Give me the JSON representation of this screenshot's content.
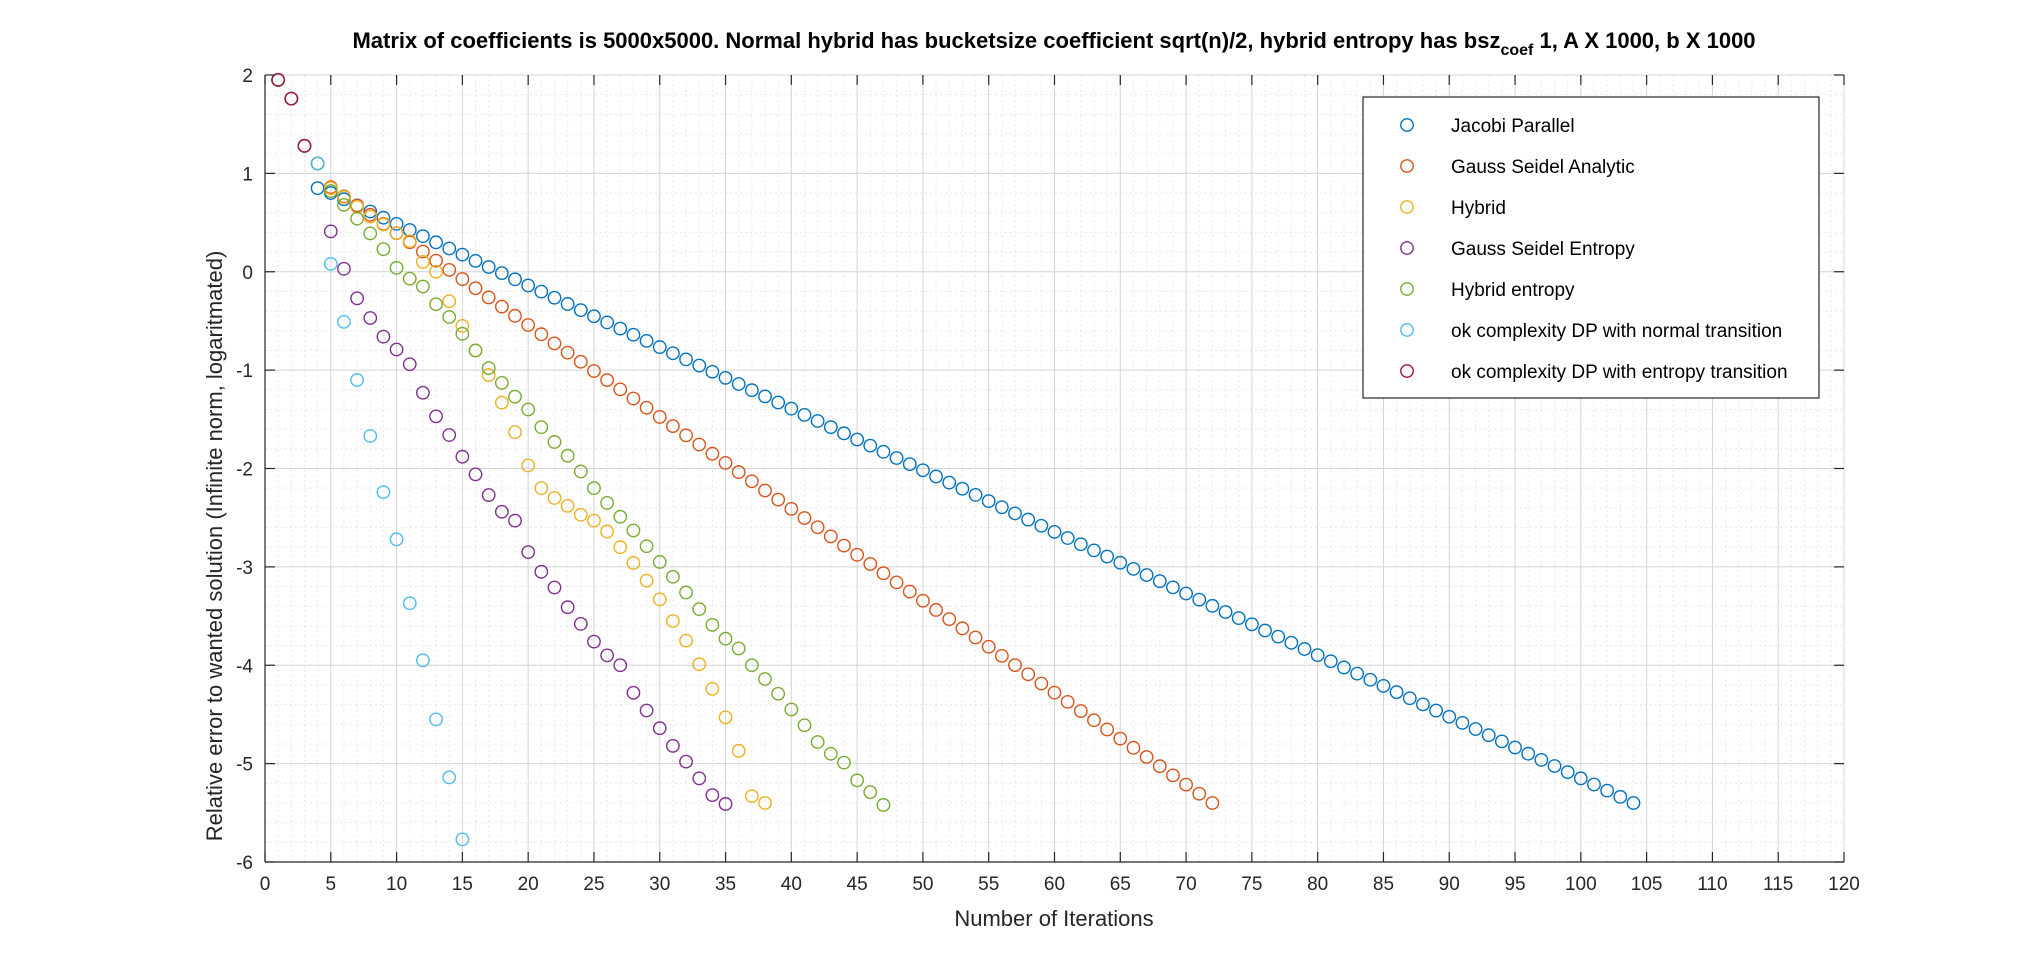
{
  "chart_data": {
    "type": "scatter",
    "title": {
      "main": "Matrix of coefficients is 5000x5000. Normal hybrid has bucketsize coefficient sqrt(n)/2, hybrid entropy has bsz",
      "sub": "coef",
      "tail": " 1, A X 1000, b X 1000"
    },
    "xlabel": "Number of Iterations",
    "ylabel": "Relative error to wanted solution (Infinite norm, logaritmated)",
    "xlim": [
      0,
      120
    ],
    "ylim": [
      -6,
      2
    ],
    "xticks": [
      0,
      5,
      10,
      15,
      20,
      25,
      30,
      35,
      40,
      45,
      50,
      55,
      60,
      65,
      70,
      75,
      80,
      85,
      90,
      95,
      100,
      105,
      110,
      115,
      120
    ],
    "yticks": [
      2,
      1,
      0,
      -1,
      -2,
      -3,
      -4,
      -5,
      -6
    ],
    "grid": "on",
    "minor_grid": "on",
    "marker": "open circle",
    "legend_position": "top-right",
    "series": [
      {
        "name": "Jacobi Parallel",
        "color": "#0072BD",
        "segments": [
          {
            "x0": 1,
            "y0": 1.95,
            "x1": 1,
            "y1": 1.95
          },
          {
            "x0": 4,
            "y0": 0.85,
            "x1": 4,
            "y1": 0.85
          },
          {
            "x0": 5,
            "y0": 0.8,
            "x1": 104,
            "y1": -5.4
          }
        ]
      },
      {
        "name": "Gauss Seidel Analytic",
        "color": "#D95319",
        "segments": [
          {
            "x0": 1,
            "y0": 1.95,
            "x1": 1,
            "y1": 1.95
          },
          {
            "x0": 2,
            "y0": 1.76,
            "x1": 2,
            "y1": 1.76
          },
          {
            "x0": 3,
            "y0": 1.28,
            "x1": 3,
            "y1": 1.28
          },
          {
            "x0": 4,
            "y0": 1.1,
            "x1": 4,
            "y1": 1.1
          },
          {
            "x0": 5,
            "y0": 0.86,
            "x1": 72,
            "y1": -5.4
          }
        ]
      },
      {
        "name": "Hybrid",
        "color": "#EDB120",
        "points": [
          [
            1,
            1.95
          ],
          [
            2,
            1.76
          ],
          [
            3,
            1.28
          ],
          [
            4,
            1.1
          ],
          [
            5,
            0.85
          ],
          [
            6,
            0.76
          ],
          [
            7,
            0.66
          ],
          [
            8,
            0.56
          ],
          [
            9,
            0.48
          ],
          [
            10,
            0.39
          ],
          [
            11,
            0.31
          ],
          [
            12,
            0.1
          ],
          [
            13,
            0.0
          ],
          [
            14,
            -0.3
          ],
          [
            15,
            -0.55
          ],
          [
            16,
            -0.8
          ],
          [
            17,
            -1.05
          ],
          [
            18,
            -1.33
          ],
          [
            19,
            -1.63
          ],
          [
            20,
            -1.97
          ],
          [
            21,
            -2.2
          ],
          [
            22,
            -2.3
          ],
          [
            23,
            -2.38
          ],
          [
            24,
            -2.47
          ],
          [
            25,
            -2.53
          ],
          [
            26,
            -2.64
          ],
          [
            27,
            -2.8
          ],
          [
            28,
            -2.96
          ],
          [
            29,
            -3.14
          ],
          [
            30,
            -3.33
          ],
          [
            31,
            -3.55
          ],
          [
            32,
            -3.75
          ],
          [
            33,
            -3.99
          ],
          [
            34,
            -4.24
          ],
          [
            35,
            -4.53
          ],
          [
            36,
            -4.87
          ],
          [
            37,
            -5.33
          ],
          [
            38,
            -5.4
          ]
        ]
      },
      {
        "name": "Gauss Seidel Entropy",
        "color": "#7E2F8E",
        "points": [
          [
            1,
            1.95
          ],
          [
            2,
            1.76
          ],
          [
            3,
            1.28
          ],
          [
            4,
            1.1
          ],
          [
            5,
            0.41
          ],
          [
            6,
            0.03
          ],
          [
            7,
            -0.27
          ],
          [
            8,
            -0.47
          ],
          [
            9,
            -0.66
          ],
          [
            10,
            -0.79
          ],
          [
            11,
            -0.94
          ],
          [
            12,
            -1.23
          ],
          [
            13,
            -1.47
          ],
          [
            14,
            -1.66
          ],
          [
            15,
            -1.88
          ],
          [
            16,
            -2.06
          ],
          [
            17,
            -2.27
          ],
          [
            18,
            -2.44
          ],
          [
            19,
            -2.53
          ],
          [
            20,
            -2.85
          ],
          [
            21,
            -3.05
          ],
          [
            22,
            -3.21
          ],
          [
            23,
            -3.41
          ],
          [
            24,
            -3.58
          ],
          [
            25,
            -3.76
          ],
          [
            26,
            -3.9
          ],
          [
            27,
            -4.0
          ],
          [
            28,
            -4.28
          ],
          [
            29,
            -4.46
          ],
          [
            30,
            -4.64
          ],
          [
            31,
            -4.82
          ],
          [
            32,
            -4.98
          ],
          [
            33,
            -5.15
          ],
          [
            34,
            -5.32
          ],
          [
            35,
            -5.41
          ]
        ]
      },
      {
        "name": "Hybrid entropy",
        "color": "#77AC30",
        "points": [
          [
            1,
            1.95
          ],
          [
            2,
            1.76
          ],
          [
            3,
            1.28
          ],
          [
            4,
            1.1
          ],
          [
            5,
            0.82
          ],
          [
            6,
            0.68
          ],
          [
            7,
            0.54
          ],
          [
            8,
            0.39
          ],
          [
            9,
            0.23
          ],
          [
            10,
            0.04
          ],
          [
            11,
            -0.07
          ],
          [
            12,
            -0.15
          ],
          [
            13,
            -0.33
          ],
          [
            14,
            -0.46
          ],
          [
            15,
            -0.63
          ],
          [
            16,
            -0.8
          ],
          [
            17,
            -0.98
          ],
          [
            18,
            -1.13
          ],
          [
            19,
            -1.27
          ],
          [
            20,
            -1.4
          ],
          [
            21,
            -1.58
          ],
          [
            22,
            -1.73
          ],
          [
            23,
            -1.87
          ],
          [
            24,
            -2.03
          ],
          [
            25,
            -2.2
          ],
          [
            26,
            -2.35
          ],
          [
            27,
            -2.49
          ],
          [
            28,
            -2.63
          ],
          [
            29,
            -2.79
          ],
          [
            30,
            -2.95
          ],
          [
            31,
            -3.1
          ],
          [
            32,
            -3.26
          ],
          [
            33,
            -3.43
          ],
          [
            34,
            -3.59
          ],
          [
            35,
            -3.73
          ],
          [
            36,
            -3.83
          ],
          [
            37,
            -4.0
          ],
          [
            38,
            -4.14
          ],
          [
            39,
            -4.29
          ],
          [
            40,
            -4.45
          ],
          [
            41,
            -4.61
          ],
          [
            42,
            -4.78
          ],
          [
            43,
            -4.9
          ],
          [
            44,
            -4.99
          ],
          [
            45,
            -5.17
          ],
          [
            46,
            -5.29
          ],
          [
            47,
            -5.42
          ]
        ]
      },
      {
        "name": "ok complexity DP with normal transition",
        "color": "#4DBEEE",
        "points": [
          [
            1,
            1.95
          ],
          [
            2,
            1.76
          ],
          [
            3,
            1.28
          ],
          [
            4,
            1.1
          ],
          [
            5,
            0.08
          ],
          [
            6,
            -0.51
          ],
          [
            7,
            -1.1
          ],
          [
            8,
            -1.67
          ],
          [
            9,
            -2.24
          ],
          [
            10,
            -2.72
          ],
          [
            11,
            -3.37
          ],
          [
            12,
            -3.95
          ],
          [
            13,
            -4.55
          ],
          [
            14,
            -5.14
          ],
          [
            15,
            -5.77
          ]
        ]
      },
      {
        "name": "ok complexity DP with entropy transition",
        "color": "#A2142F",
        "points": [
          [
            1,
            1.95
          ],
          [
            2,
            1.76
          ],
          [
            3,
            1.28
          ]
        ]
      }
    ]
  }
}
